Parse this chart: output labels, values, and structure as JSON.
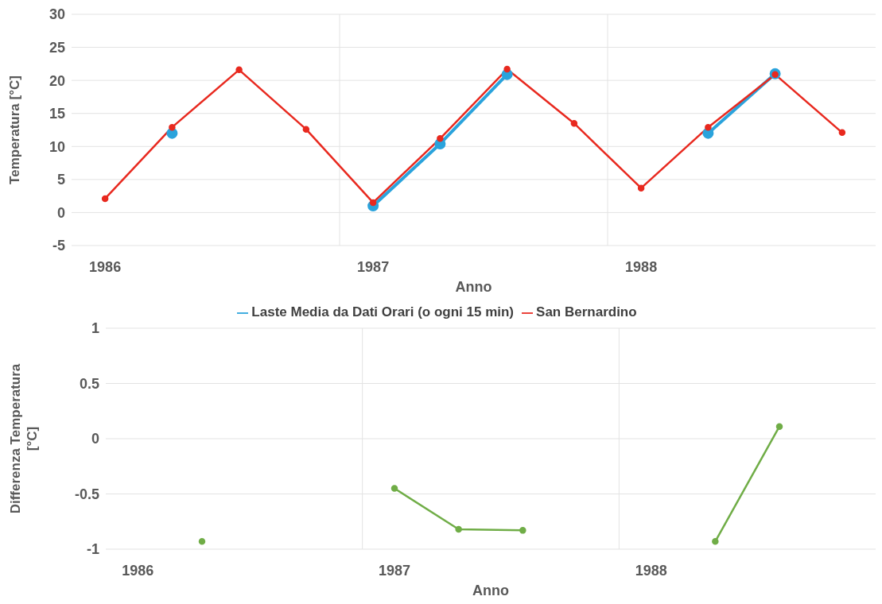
{
  "chart_data": [
    {
      "type": "line",
      "xlabel": "Anno",
      "ylabel": "Temperatura [°C]",
      "categories": [
        "1986",
        null,
        null,
        null,
        "1987",
        null,
        null,
        null,
        "1988",
        null,
        null,
        null
      ],
      "series": [
        {
          "name": "Laste Media da Dati Orari (o ogni 15 min)",
          "color": "#2aa3dc",
          "values": [
            null,
            12.0,
            null,
            null,
            1.0,
            10.4,
            20.9,
            null,
            null,
            12.0,
            21.0,
            null
          ]
        },
        {
          "name": "San Bernardino",
          "color": "#e8291f",
          "values": [
            2.1,
            12.9,
            21.6,
            12.6,
            1.5,
            11.2,
            21.7,
            13.5,
            3.7,
            12.9,
            20.9,
            12.1
          ]
        }
      ],
      "ylim": [
        -5,
        30
      ],
      "yticks": [
        -5,
        0,
        5,
        10,
        15,
        20,
        25,
        30
      ],
      "grid": true,
      "legend": "bottom",
      "marker": "circle",
      "line_style": "solid"
    },
    {
      "type": "line",
      "xlabel": "Anno",
      "ylabel": "Differenza Temperatura [°C]",
      "categories": [
        "1986",
        null,
        null,
        null,
        "1987",
        null,
        null,
        null,
        "1988",
        null,
        null,
        null
      ],
      "series": [
        {
          "color": "#70ad47",
          "values": [
            null,
            -0.93,
            null,
            null,
            -0.45,
            -0.82,
            -0.83,
            null,
            null,
            -0.93,
            0.11,
            null
          ]
        }
      ],
      "ylim": [
        -1,
        1
      ],
      "yticks": [
        -1,
        -0.5,
        0,
        0.5,
        1
      ],
      "grid": true,
      "legend": false,
      "marker": "circle",
      "line_style": "solid"
    }
  ]
}
